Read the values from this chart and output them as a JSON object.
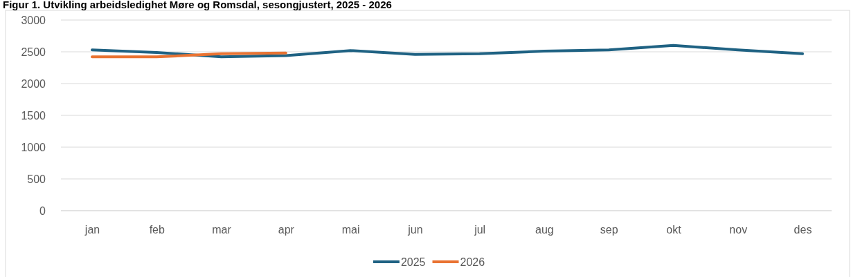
{
  "chart_data": {
    "type": "line",
    "title": "Figur 1. Utvikling arbeidsledighet Møre og Romsdal, sesongjustert, 2025 - 2026",
    "categories": [
      "jan",
      "feb",
      "mar",
      "apr",
      "mai",
      "jun",
      "jul",
      "aug",
      "sep",
      "okt",
      "nov",
      "des"
    ],
    "series": [
      {
        "name": "2025",
        "color": "#1f6283",
        "values": [
          2530,
          2490,
          2420,
          2440,
          2520,
          2460,
          2470,
          2510,
          2530,
          2600,
          2530,
          2470
        ]
      },
      {
        "name": "2026",
        "color": "#e97332",
        "values": [
          2420,
          2420,
          2470,
          2480,
          null,
          null,
          null,
          null,
          null,
          null,
          null,
          null
        ]
      }
    ],
    "ylim": [
      0,
      3000
    ],
    "yticks": [
      0,
      500,
      1000,
      1500,
      2000,
      2500,
      3000
    ],
    "grid": "y",
    "legend": "bottom",
    "marker": "none",
    "line_style": "solid"
  }
}
